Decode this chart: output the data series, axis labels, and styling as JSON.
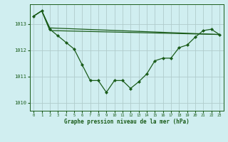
{
  "title": "Graphe pression niveau de la mer (hPa)",
  "background_color": "#d0eef0",
  "grid_color": "#b0cccc",
  "line_color": "#1a5c1a",
  "xlim": [
    -0.5,
    23.5
  ],
  "ylim": [
    1009.7,
    1013.75
  ],
  "yticks": [
    1010,
    1011,
    1012,
    1013
  ],
  "xticks": [
    0,
    1,
    2,
    3,
    4,
    5,
    6,
    7,
    8,
    9,
    10,
    11,
    12,
    13,
    14,
    15,
    16,
    17,
    18,
    19,
    20,
    21,
    22,
    23
  ],
  "line1_x": [
    0,
    1,
    2,
    3,
    4,
    5,
    6,
    7,
    8,
    9,
    10,
    11,
    12,
    13,
    14,
    15,
    16,
    17,
    18,
    19,
    20,
    21,
    22,
    23
  ],
  "line1_y": [
    1013.3,
    1013.5,
    1012.8,
    1012.55,
    1012.3,
    1012.05,
    1011.45,
    1010.85,
    1010.85,
    1010.4,
    1010.85,
    1010.85,
    1010.55,
    1010.8,
    1011.1,
    1011.6,
    1011.7,
    1011.7,
    1012.1,
    1012.2,
    1012.5,
    1012.75,
    1012.8,
    1012.6
  ],
  "line2_x": [
    0,
    1,
    2,
    23
  ],
  "line2_y": [
    1013.3,
    1013.5,
    1012.85,
    1012.6
  ],
  "line3_x": [
    0,
    1,
    2,
    23
  ],
  "line3_y": [
    1013.3,
    1013.5,
    1012.75,
    1012.6
  ]
}
